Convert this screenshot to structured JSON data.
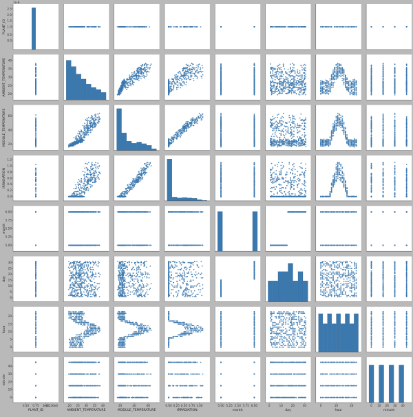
{
  "chart_data": {
    "type": "scatter",
    "layout": "pairplot",
    "diagonal": "histogram",
    "color": "#3b78ae",
    "edge_color": "#2c5f8c",
    "grid": false,
    "variables": [
      {
        "name": "PLANT_ID",
        "label": "PLANT_ID",
        "range": [
          4.135,
          4.137
        ],
        "kind": "constant",
        "value": 4.136,
        "x_ticks": [
          {
            "v": 4.1355,
            "t": "0.50"
          },
          {
            "v": 4.136,
            "t": "0.75"
          },
          {
            "v": 4.1365,
            "t": "1.00"
          }
        ],
        "y_ticks": [
          {
            "v": 4.1353,
            "t": "0.0"
          },
          {
            "v": 4.1356,
            "t": "0.5"
          },
          {
            "v": 4.136,
            "t": "1.0"
          },
          {
            "v": 4.1363,
            "t": "1.5"
          },
          {
            "v": 4.1366,
            "t": "2.0"
          },
          {
            "v": 4.1369,
            "t": "2.5"
          }
        ],
        "offset_text": "+4.136e6",
        "exponent_text": "1e-6",
        "hist": [
          0,
          0,
          0,
          0,
          1,
          0,
          0,
          0,
          0,
          0
        ]
      },
      {
        "name": "AMBIENT_TEMPERATURE",
        "label": "AMBIENT_TEMPERATURE",
        "range": [
          18,
          42
        ],
        "ticks": [
          {
            "v": 20,
            "t": "20"
          },
          {
            "v": 25,
            "t": "25"
          },
          {
            "v": 30,
            "t": "30"
          },
          {
            "v": 35,
            "t": "35"
          },
          {
            "v": 40,
            "t": "40"
          }
        ],
        "hist": [
          0.95,
          0.8,
          0.62,
          0.5,
          0.38,
          0.3,
          0.25,
          0.18
        ]
      },
      {
        "name": "MODULE_TEMPERATURE",
        "label": "MODULE_TEMPERATURE",
        "range": [
          15,
          72
        ],
        "ticks": [
          {
            "v": 20,
            "t": "20"
          },
          {
            "v": 40,
            "t": "40"
          },
          {
            "v": 60,
            "t": "60"
          }
        ],
        "hist": [
          1.0,
          0.42,
          0.22,
          0.17,
          0.2,
          0.16,
          0.12,
          0.04
        ]
      },
      {
        "name": "IRRADIATION",
        "label": "IRRADIATION",
        "range": [
          -0.05,
          1.25
        ],
        "ticks": [
          {
            "v": 0,
            "t": "0.00"
          },
          {
            "v": 0.25,
            "t": "0.25"
          },
          {
            "v": 0.5,
            "t": "0.50"
          },
          {
            "v": 0.75,
            "t": "0.75"
          },
          {
            "v": 1.0,
            "t": "1.00"
          }
        ],
        "y_ticks": [
          {
            "v": 0,
            "t": "0.0"
          },
          {
            "v": 0.2,
            "t": "0.2"
          },
          {
            "v": 0.4,
            "t": "0.4"
          },
          {
            "v": 0.6,
            "t": "0.6"
          },
          {
            "v": 0.8,
            "t": "0.8"
          },
          {
            "v": 1.0,
            "t": "1.0"
          },
          {
            "v": 1.2,
            "t": "1.2"
          }
        ],
        "hist": [
          1.0,
          0.09,
          0.07,
          0.08,
          0.07,
          0.06,
          0.03,
          0.01
        ]
      },
      {
        "name": "month",
        "label": "month",
        "range": [
          4.9,
          6.1
        ],
        "ticks": [
          {
            "v": 5,
            "t": "5.00"
          },
          {
            "v": 5.25,
            "t": "5.25"
          },
          {
            "v": 5.5,
            "t": "5.50"
          },
          {
            "v": 5.75,
            "t": "5.75"
          },
          {
            "v": 6,
            "t": "6.00"
          }
        ],
        "hist": [
          0.95,
          0,
          0,
          0,
          0,
          0,
          0,
          0.95
        ]
      },
      {
        "name": "day",
        "label": "day",
        "range": [
          -1,
          33
        ],
        "ticks": [
          {
            "v": 0,
            "t": "0"
          },
          {
            "v": 10,
            "t": "10"
          },
          {
            "v": 20,
            "t": "20"
          },
          {
            "v": 30,
            "t": "30"
          }
        ],
        "y_ticks": [
          {
            "v": 0,
            "t": "0"
          },
          {
            "v": 5,
            "t": "5"
          },
          {
            "v": 10,
            "t": "10"
          },
          {
            "v": 15,
            "t": "15"
          },
          {
            "v": 20,
            "t": "20"
          },
          {
            "v": 25,
            "t": "25"
          },
          {
            "v": 30,
            "t": "30"
          }
        ],
        "hist": [
          0.5,
          0.5,
          0.72,
          0.72,
          0.92,
          0.5,
          0.72,
          0.5
        ]
      },
      {
        "name": "hour",
        "label": "hour",
        "range": [
          -1.5,
          24.5
        ],
        "ticks": [
          {
            "v": 0,
            "t": "0"
          },
          {
            "v": 10,
            "t": "10"
          },
          {
            "v": 20,
            "t": "20"
          }
        ],
        "y_ticks": [
          {
            "v": 0,
            "t": "0"
          },
          {
            "v": 5,
            "t": "5"
          },
          {
            "v": 10,
            "t": "10"
          },
          {
            "v": 15,
            "t": "15"
          },
          {
            "v": 20,
            "t": "20"
          }
        ],
        "hist": [
          0.92,
          0.68,
          0.92,
          0.68,
          0.92,
          0.68,
          0.92,
          0.68,
          0.92
        ]
      },
      {
        "name": "minute",
        "label": "minute",
        "range": [
          -3,
          48
        ],
        "ticks": [
          {
            "v": 0,
            "t": "0"
          },
          {
            "v": 10,
            "t": "10"
          },
          {
            "v": 20,
            "t": "20"
          },
          {
            "v": 30,
            "t": "30"
          },
          {
            "v": 40,
            "t": "40"
          }
        ],
        "hist": [
          0.9,
          0,
          0.9,
          0,
          0.9,
          0,
          0.9,
          0
        ]
      }
    ]
  }
}
